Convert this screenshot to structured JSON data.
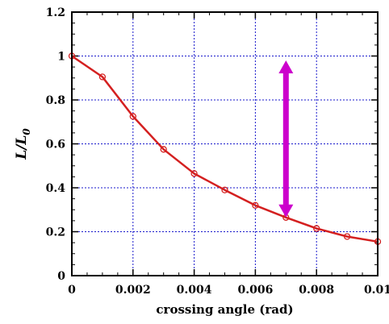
{
  "chart_data": {
    "type": "line",
    "xlabel": "crossing angle (rad)",
    "ylabel": {
      "main": "L/L",
      "subscript": "0"
    },
    "xlim": [
      0,
      0.01
    ],
    "ylim": [
      0,
      1.2
    ],
    "x_ticks": [
      0,
      0.002,
      0.004,
      0.006,
      0.008,
      0.01
    ],
    "x_tick_labels": [
      "0",
      "0.002",
      "0.004",
      "0.006",
      "0.008",
      "0.01"
    ],
    "y_ticks": [
      0,
      0.2,
      0.4,
      0.6,
      0.8,
      1,
      1.2
    ],
    "y_tick_labels": [
      "0",
      "0.2",
      "0.4",
      "0.6",
      "0.8",
      "1",
      "1.2"
    ],
    "grid": true,
    "series": [
      {
        "color": "#d42020",
        "marker": "open-circle",
        "x": [
          0,
          0.001,
          0.002,
          0.003,
          0.004,
          0.005,
          0.006,
          0.007,
          0.008,
          0.009,
          0.01
        ],
        "y": [
          1.0,
          0.905,
          0.725,
          0.575,
          0.465,
          0.39,
          0.32,
          0.265,
          0.215,
          0.178,
          0.155
        ]
      }
    ],
    "annotations": [
      {
        "type": "double-arrow",
        "color": "#cc00cc",
        "x": 0.007,
        "y_from": 0.265,
        "y_to": 0.98
      }
    ],
    "grid_color": "#1a1acc"
  }
}
